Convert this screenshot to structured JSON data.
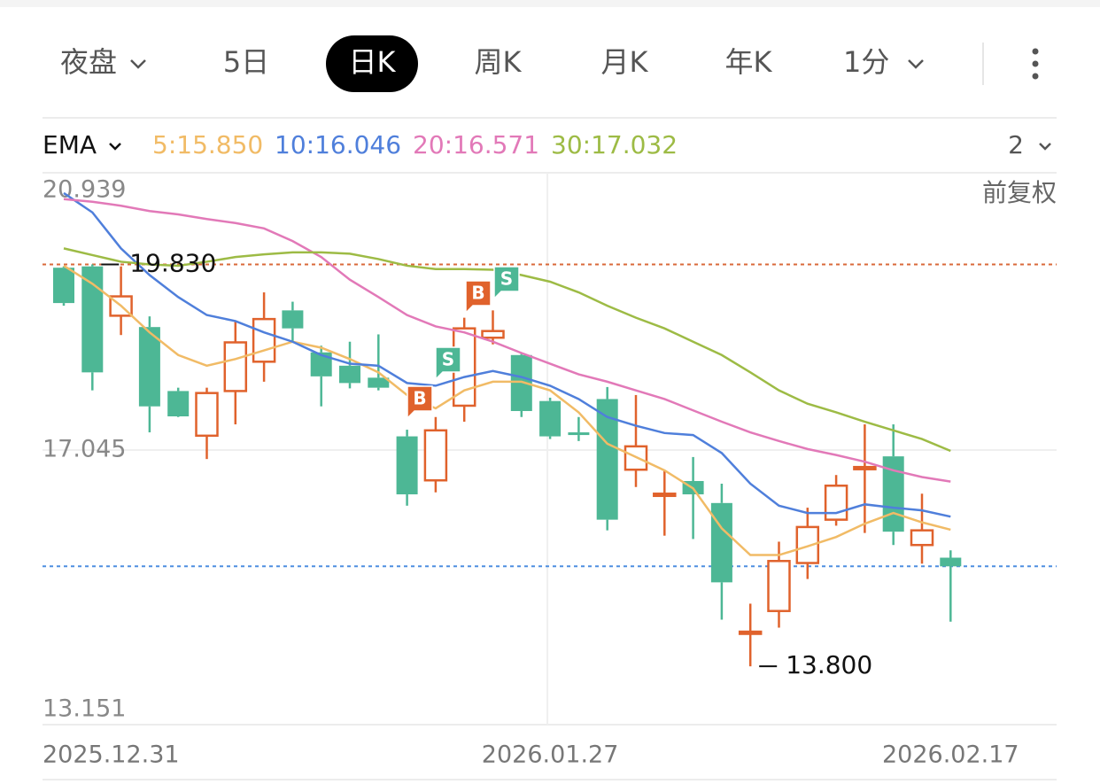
{
  "tabs": [
    "夜盘",
    "5日",
    "日K",
    "周K",
    "月K",
    "年K",
    "1分"
  ],
  "selected_tab": "日K",
  "indicator": {
    "name": "EMA",
    "items": [
      "5:15.850",
      "10:16.046",
      "20:16.571",
      "30:17.032"
    ],
    "count": "2",
    "adjust": "前复权"
  },
  "chart_data": {
    "type": "candlestick",
    "categories": [
      "2025.12.31",
      null,
      null,
      null,
      null,
      null,
      null,
      null,
      null,
      null,
      null,
      null,
      null,
      null,
      null,
      null,
      null,
      "2026.01.27",
      null,
      null,
      null,
      null,
      null,
      null,
      null,
      null,
      null,
      null,
      null,
      null,
      null,
      "2026.02.17"
    ],
    "open": [
      19.78,
      19.8,
      19.06,
      18.89,
      17.93,
      17.26,
      17.93,
      18.37,
      19.14,
      18.51,
      18.31,
      18.13,
      17.25,
      16.59,
      17.71,
      18.73,
      18.47,
      17.78,
      17.31,
      17.81,
      16.75,
      16.37,
      16.58,
      16.25,
      14.3,
      14.63,
      15.35,
      16.0,
      16.77,
      16.95,
      15.62,
      15.43
    ],
    "high": [
      19.8,
      19.83,
      19.8,
      19.05,
      17.98,
      17.98,
      18.98,
      19.41,
      19.27,
      18.61,
      18.67,
      18.78,
      17.35,
      17.54,
      19.03,
      19.14,
      18.5,
      17.83,
      17.54,
      17.99,
      17.87,
      16.74,
      16.94,
      16.54,
      14.74,
      15.67,
      16.18,
      16.67,
      17.43,
      17.43,
      16.39,
      15.54
    ],
    "low": [
      19.21,
      17.94,
      18.77,
      17.31,
      17.54,
      16.91,
      17.43,
      18.07,
      18.67,
      17.7,
      17.97,
      17.94,
      16.21,
      16.41,
      17.47,
      18.63,
      17.54,
      17.21,
      17.18,
      15.84,
      16.49,
      15.76,
      15.71,
      14.5,
      13.8,
      14.38,
      15.11,
      15.91,
      15.8,
      15.62,
      15.34,
      14.47
    ],
    "close": [
      19.25,
      18.21,
      19.35,
      17.7,
      17.55,
      17.9,
      18.66,
      19.01,
      18.87,
      18.15,
      18.05,
      17.98,
      16.38,
      17.34,
      18.87,
      18.83,
      17.63,
      17.25,
      17.27,
      16.0,
      17.1,
      16.39,
      16.38,
      15.06,
      14.32,
      15.38,
      15.89,
      16.51,
      16.79,
      15.82,
      15.84,
      15.3
    ],
    "up_color": "#e0622c",
    "down_color": "#4db795",
    "series": [
      {
        "name": "5",
        "color": "#f1bb66",
        "values": [
          19.81,
          19.54,
          19.21,
          18.81,
          18.47,
          18.31,
          18.41,
          18.54,
          18.67,
          18.58,
          18.41,
          18.21,
          17.87,
          17.67,
          17.94,
          18.07,
          18.07,
          17.94,
          17.61,
          17.14,
          16.94,
          16.74,
          16.47,
          15.87,
          15.47,
          15.47,
          15.6,
          15.74,
          15.94,
          16.1,
          15.96,
          15.85
        ]
      },
      {
        "name": "10",
        "color": "#4f7fdb",
        "values": [
          20.9,
          20.61,
          20.07,
          19.67,
          19.34,
          19.07,
          18.98,
          18.81,
          18.67,
          18.47,
          18.34,
          18.31,
          18.05,
          18.01,
          18.14,
          18.23,
          18.14,
          18.01,
          17.81,
          17.54,
          17.41,
          17.3,
          17.27,
          17.0,
          16.54,
          16.21,
          16.1,
          16.1,
          16.23,
          16.18,
          16.14,
          16.046
        ]
      },
      {
        "name": "20",
        "color": "#e279b8",
        "values": [
          20.81,
          20.77,
          20.71,
          20.63,
          20.58,
          20.51,
          20.45,
          20.37,
          20.18,
          19.94,
          19.6,
          19.34,
          19.07,
          18.9,
          18.81,
          18.67,
          18.5,
          18.34,
          18.18,
          18.07,
          17.94,
          17.81,
          17.64,
          17.47,
          17.31,
          17.18,
          17.06,
          16.97,
          16.87,
          16.74,
          16.64,
          16.571
        ]
      },
      {
        "name": "30",
        "color": "#9dbb45",
        "values": [
          20.07,
          19.97,
          19.87,
          19.83,
          19.81,
          19.87,
          19.94,
          19.98,
          20.01,
          20.01,
          19.99,
          19.91,
          19.81,
          19.76,
          19.76,
          19.75,
          19.67,
          19.57,
          19.41,
          19.21,
          19.03,
          18.87,
          18.67,
          18.47,
          18.21,
          17.94,
          17.74,
          17.61,
          17.47,
          17.34,
          17.21,
          17.032
        ]
      }
    ],
    "ylim": [
      13.151,
      20.939
    ],
    "yticks": [
      {
        "value": 13.151,
        "label": "13.151"
      },
      {
        "value": 17.045,
        "label": "17.045"
      },
      {
        "value": 20.939,
        "label": "20.939"
      }
    ],
    "high_annotation": {
      "value": 19.83,
      "label": "19.830"
    },
    "low_annotation": {
      "value": 13.8,
      "label": "13.800"
    },
    "markers": [
      "B",
      "S",
      "B",
      "S"
    ]
  }
}
